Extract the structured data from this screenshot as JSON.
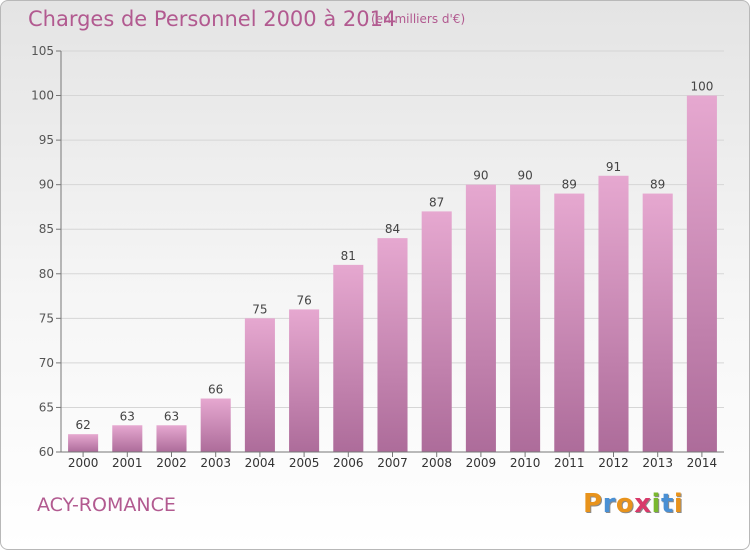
{
  "header": {
    "title": "Charges de Personnel 2000 à 2014",
    "unit": "(en milliers d'€)"
  },
  "footer": {
    "town": "ACY-ROMANCE",
    "logo": "Proxiti"
  },
  "colors": {
    "title": "#b25a90",
    "bar_top": "#e6a8d0",
    "bar_bottom": "#ad6c9a",
    "logo_letters": [
      "#e8931c",
      "#4a90d4",
      "#e8931c",
      "#d83a6a",
      "#7ab82e",
      "#4a90d4",
      "#e8931c"
    ]
  },
  "chart_data": {
    "type": "bar",
    "categories": [
      "2000",
      "2001",
      "2002",
      "2003",
      "2004",
      "2005",
      "2006",
      "2007",
      "2008",
      "2009",
      "2010",
      "2011",
      "2012",
      "2013",
      "2014"
    ],
    "values": [
      62,
      63,
      63,
      66,
      75,
      76,
      81,
      84,
      87,
      90,
      90,
      89,
      91,
      89,
      100
    ],
    "value_labels": [
      "62",
      "63",
      "63",
      "66",
      "75",
      "76",
      "81",
      "84",
      "87",
      "90",
      "90",
      "89",
      "91",
      "89",
      "100"
    ],
    "title": "Charges de Personnel 2000 à 2014",
    "xlabel": "",
    "ylabel": "",
    "ylim": [
      60,
      105
    ],
    "yticks": [
      60,
      65,
      70,
      75,
      80,
      85,
      90,
      95,
      100,
      105
    ],
    "grid": true,
    "legend": "none"
  }
}
